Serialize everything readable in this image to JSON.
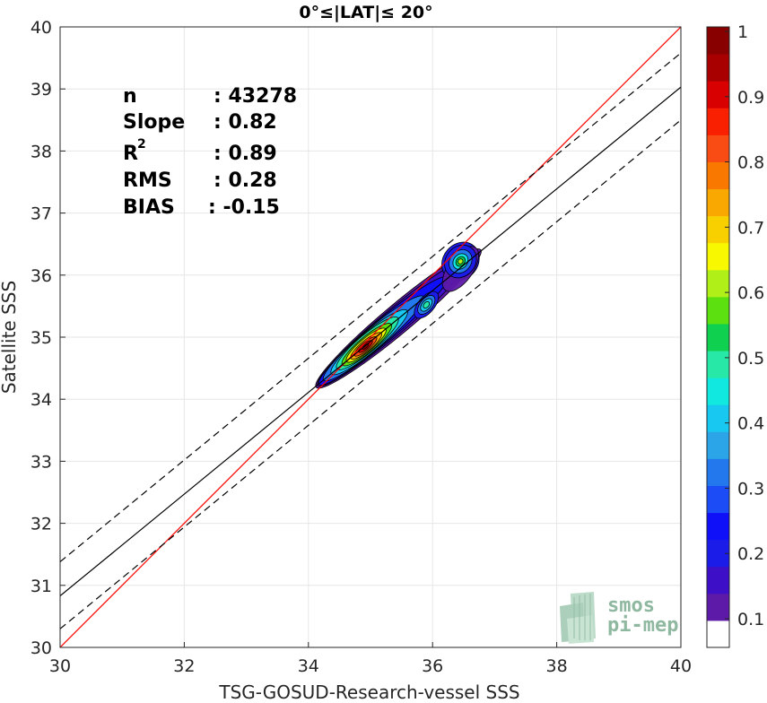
{
  "chart_data": {
    "type": "heatmap",
    "title": "0°≤|LAT|≤ 20°",
    "xlabel": "TSG-GOSUD-Research-vessel SSS",
    "ylabel": "Satellite SSS",
    "xlim": [
      30,
      40
    ],
    "ylim": [
      30,
      40
    ],
    "xticks": [
      "30",
      "32",
      "34",
      "36",
      "38",
      "40"
    ],
    "yticks": [
      "30",
      "31",
      "32",
      "33",
      "34",
      "35",
      "36",
      "37",
      "38",
      "39",
      "40"
    ],
    "grid": true,
    "colorbar": {
      "ticks": [
        "0.1",
        "0.2",
        "0.3",
        "0.4",
        "0.5",
        "0.6",
        "0.7",
        "0.8",
        "0.9",
        "1"
      ],
      "colors": [
        "#ffffff",
        "#5d1aa8",
        "#3d10c8",
        "#1c1ce8",
        "#1010f8",
        "#1c4cf6",
        "#2478ee",
        "#2ca4e8",
        "#18c8f0",
        "#10e8e0",
        "#28e8a8",
        "#10d050",
        "#5ce010",
        "#b0f018",
        "#f8f800",
        "#f8d000",
        "#f8a800",
        "#f87800",
        "#f84c14",
        "#f82000",
        "#d80000",
        "#a80000",
        "#880000"
      ]
    },
    "density_peaks": [
      {
        "x": 34.92,
        "y": 34.85,
        "value": 1.0
      },
      {
        "x": 35.9,
        "y": 35.5,
        "value": 0.45
      },
      {
        "x": 36.45,
        "y": 36.2,
        "value": 0.55
      }
    ],
    "reference_lines": [
      {
        "type": "identity",
        "slope": 1.0,
        "intercept": 0.0,
        "color": "#ff0000",
        "style": "solid"
      },
      {
        "type": "regression",
        "slope": 0.82,
        "intercept": 6.23,
        "color": "#000000",
        "style": "solid"
      },
      {
        "type": "regression-upper",
        "slope": 0.82,
        "intercept": 6.78,
        "color": "#000000",
        "style": "dashed"
      },
      {
        "type": "regression-lower",
        "slope": 0.82,
        "intercept": 5.7,
        "color": "#000000",
        "style": "dashed"
      }
    ],
    "annotations": [
      {
        "label": "n",
        "value": ": 43278"
      },
      {
        "label": "Slope",
        "value": ": 0.82"
      },
      {
        "label": "R",
        "label_sup": "2",
        "value": ": 0.89"
      },
      {
        "label": "RMS",
        "value": ": 0.28"
      },
      {
        "label": "BIAS",
        "value": ": -0.15"
      }
    ]
  },
  "logo": {
    "line1": "smos",
    "line2": "pi-mep",
    "color": "#8fb8a0"
  }
}
